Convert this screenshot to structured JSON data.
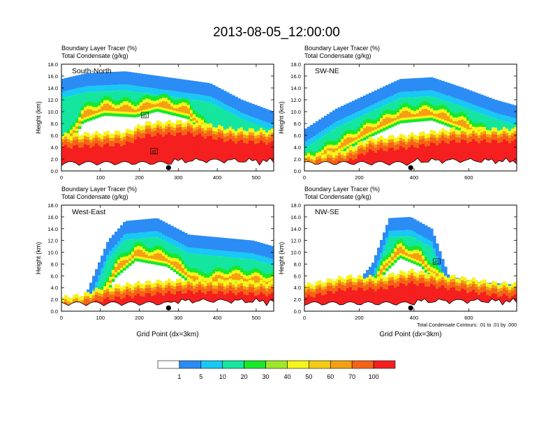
{
  "title": "2013-08-05_12:00:00",
  "colorbar": {
    "colors": [
      "#ffffff",
      "#2b8cf5",
      "#18c8f5",
      "#14e6a0",
      "#18e82a",
      "#9cea25",
      "#f5f51a",
      "#f5cc14",
      "#f5a012",
      "#f56416",
      "#f51f1f"
    ],
    "labels": [
      "1",
      "5",
      "10",
      "20",
      "30",
      "40",
      "50",
      "60",
      "70",
      "100"
    ]
  },
  "chart_data": [
    {
      "type": "heatmap",
      "name": "South-North",
      "title_lines": [
        "Boundary Layer Tracer   (%)",
        "Total Condensate   (g/kg)"
      ],
      "ylabel": "Height (km)",
      "xlabel": "",
      "xlim": [
        0,
        545
      ],
      "ylim": [
        0,
        18
      ],
      "xticks": [
        0,
        100,
        200,
        300,
        400,
        500
      ],
      "yticks": [
        "0.0",
        "2.0",
        "4.0",
        "6.0",
        "8.0",
        "10.0",
        "12.0",
        "14.0",
        "16.0",
        "18.0"
      ],
      "marker_x": 275,
      "boxes": [
        {
          "label": "d1",
          "x": 214,
          "y": 9.3
        },
        {
          "label": "d1",
          "x": 238,
          "y": 3.2
        }
      ]
    },
    {
      "type": "heatmap",
      "name": "SW-NE",
      "title_lines": [
        "Boundary Layer Tracer   (%)",
        "Total Condensate   (g/kg)"
      ],
      "ylabel": "Height (km)",
      "xlabel": "",
      "xlim": [
        0,
        775
      ],
      "ylim": [
        0,
        18
      ],
      "xticks": [
        0,
        200,
        400,
        600
      ],
      "yticks": [
        "0.0",
        "2.0",
        "4.0",
        "6.0",
        "8.0",
        "10.0",
        "12.0",
        "14.0",
        "16.0",
        "18.0"
      ],
      "marker_x": 388,
      "boxes": []
    },
    {
      "type": "heatmap",
      "name": "West-East",
      "title_lines": [
        "Boundary Layer Tracer   (%)",
        "Total Condensate   (g/kg)"
      ],
      "ylabel": "Height (km)",
      "xlabel": "Grid Point (dx=3km)",
      "xlim": [
        0,
        545
      ],
      "ylim": [
        0,
        18
      ],
      "xticks": [
        0,
        100,
        200,
        300,
        400,
        500
      ],
      "yticks": [
        "0.0",
        "2.0",
        "4.0",
        "6.0",
        "8.0",
        "10.0",
        "12.0",
        "14.0",
        "16.0",
        "18.0"
      ],
      "marker_x": 275,
      "boxes": []
    },
    {
      "type": "heatmap",
      "name": "NW-SE",
      "title_lines": [
        "Boundary Layer Tracer   (%)",
        "Total Condensate   (g/kg)"
      ],
      "ylabel": "Height (km)",
      "xlabel": "Grid Point (dx=3km)",
      "xlim": [
        0,
        775
      ],
      "ylim": [
        0,
        18
      ],
      "xticks": [
        0,
        200,
        400,
        600
      ],
      "yticks": [
        "0.0",
        "2.0",
        "4.0",
        "6.0",
        "8.0",
        "10.0",
        "12.0",
        "14.0",
        "16.0",
        "18.0"
      ],
      "marker_x": 388,
      "boxes": [
        {
          "label": "d1",
          "x": 483,
          "y": 8.3
        }
      ],
      "footnote": "Total Condensate Contours: .01 to .01 by .000"
    }
  ]
}
